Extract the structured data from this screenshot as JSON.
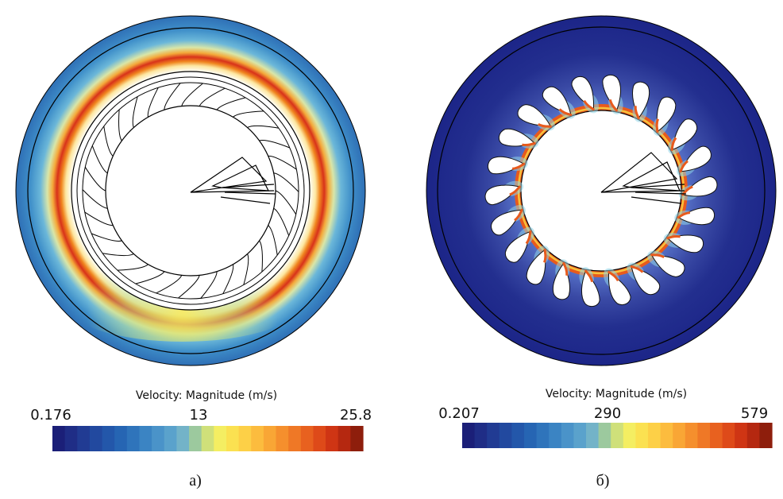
{
  "panels": [
    {
      "id": "a",
      "caption": "а)",
      "colorbar": {
        "title": "Velocity: Magnitude (m/s)",
        "min_label": "0.176",
        "mid_label": "13",
        "max_label": "25.8"
      },
      "blade_count": 30
    },
    {
      "id": "b",
      "caption": "б)",
      "colorbar": {
        "title": "Velocity: Magnitude (m/s)",
        "min_label": "0.207",
        "mid_label": "290",
        "max_label": "579"
      },
      "blade_count": 22
    }
  ],
  "colormap": [
    "#1b1f78",
    "#1f2d86",
    "#213b93",
    "#22499f",
    "#2357aa",
    "#2665b3",
    "#2f74bb",
    "#3b84c3",
    "#4a93c9",
    "#5aa2cc",
    "#73b3c8",
    "#9cc99e",
    "#cfe07a",
    "#f4ee62",
    "#fbe151",
    "#fdd047",
    "#fcbc3e",
    "#f9a635",
    "#f58f2d",
    "#ef7826",
    "#e8611f",
    "#de4a19",
    "#cf3514",
    "#b52810",
    "#8e1e0c"
  ]
}
